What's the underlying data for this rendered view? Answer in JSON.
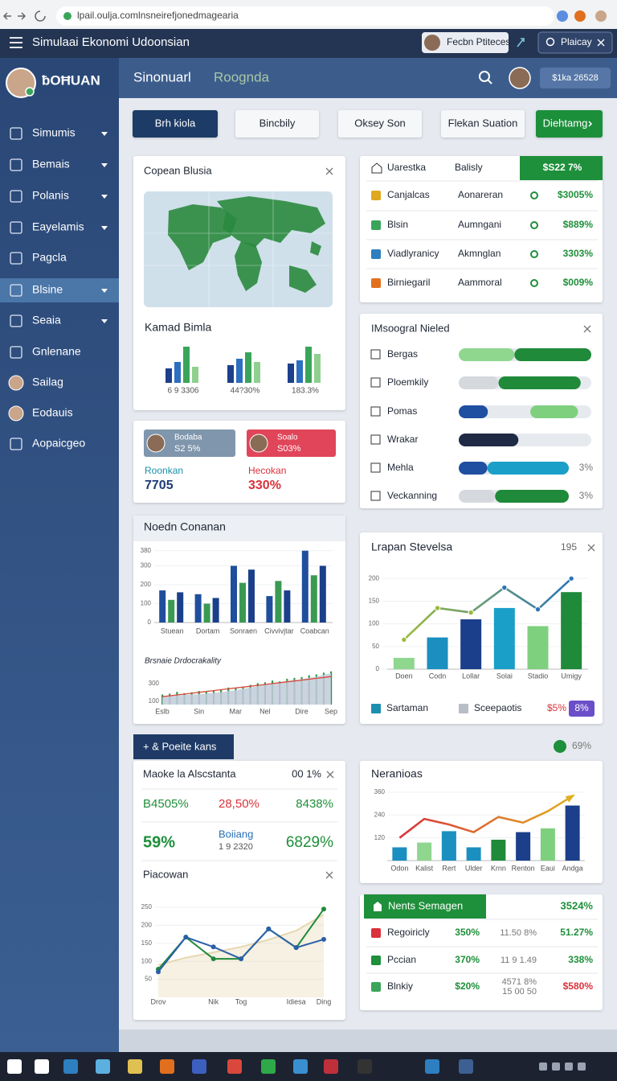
{
  "browser": {
    "url": "lpail.oulja.comlnsneirefjonedmagearia"
  },
  "topbar": {
    "title": "Simulaai Ekonomi Udoonsian",
    "user": "Fecbn Ptiteces",
    "search": "Plaicay"
  },
  "sidebar": {
    "brand": "ƀOĦUAN",
    "active": 5,
    "items": [
      {
        "label": "Simumis",
        "expandable": true
      },
      {
        "label": "Bemais",
        "expandable": true
      },
      {
        "label": "Polanis",
        "expandable": true
      },
      {
        "label": "Eayelamis",
        "expandable": true
      },
      {
        "label": "Pagcla"
      },
      {
        "label": "Blsine",
        "expandable": true
      },
      {
        "label": "Seaia",
        "expandable": true
      },
      {
        "label": "Gnlenane"
      },
      {
        "label": "Sailag",
        "avatar": true
      },
      {
        "label": "Eodauis",
        "avatar": true
      },
      {
        "label": "Aopaicgeo"
      }
    ]
  },
  "header": {
    "tabs": [
      "Sinonuarl",
      "Roognda"
    ],
    "badge": "$1ka 26528"
  },
  "buttons": [
    "Brh kiola",
    "Bincbily",
    "Oksey Son",
    "Flekan Suation",
    "Diehtamg"
  ],
  "map_card": {
    "title": "Copean Blusia",
    "subtitle": "Kamad Bimla",
    "colors": [
      "#1d3f8c",
      "#2d6fc0",
      "#3aa55a",
      "#8fd08f"
    ],
    "groups": [
      {
        "label": "6 9 3306",
        "values": [
          36,
          52,
          90,
          40
        ]
      },
      {
        "label": "44?30%",
        "values": [
          44,
          60,
          76,
          52
        ]
      },
      {
        "label": "183.3%",
        "values": [
          48,
          56,
          90,
          72
        ]
      }
    ]
  },
  "status_table": {
    "columns": [
      "Uarestka",
      "Balisly",
      "$S22 7%"
    ],
    "rows": [
      {
        "cells": [
          "Canjalcas",
          "Aonareran",
          "$3005%"
        ],
        "icon_color": "#e0a81e"
      },
      {
        "cells": [
          "Blsin",
          "Aumngani",
          "$889%"
        ],
        "icon_color": "#3aa55a"
      },
      {
        "cells": [
          "Viadlyranicy",
          "Akmnglan",
          "3303%"
        ],
        "icon_color": "#2d7fc0"
      },
      {
        "cells": [
          "Birniegaril",
          "Aammoral",
          "$009%"
        ],
        "icon_color": "#e0701e"
      }
    ]
  },
  "progress_card": {
    "title": "IMsoogral Nieled",
    "rows": [
      {
        "label": "Bergas",
        "parts": [
          {
            "color": "#8fd68f",
            "value": 42
          },
          {
            "color": "#1f8a3a",
            "value": 58
          }
        ]
      },
      {
        "label": "Ploemkily",
        "parts": [
          {
            "color": "#d5d9dd",
            "value": 30
          },
          {
            "color": "#1f8a3a",
            "value": 62
          }
        ]
      },
      {
        "label": "Pomas",
        "parts": [
          {
            "color": "#1f4fa0",
            "value": 22
          },
          {
            "color": "#e6e9ee",
            "value": 32
          },
          {
            "color": "#7ed07e",
            "value": 36
          }
        ]
      },
      {
        "label": "Wrakar",
        "parts": [
          {
            "color": "#1f2a44",
            "value": 45
          }
        ]
      },
      {
        "label": "Mehla",
        "note": "3%",
        "parts": [
          {
            "color": "#1f4fa0",
            "value": 26
          },
          {
            "color": "#1a9fc8",
            "value": 74
          }
        ]
      },
      {
        "label": "Veckanning",
        "note": "3%",
        "parts": [
          {
            "color": "#d5d9dd",
            "value": 33
          },
          {
            "color": "#1f8a3a",
            "value": 67
          }
        ]
      }
    ]
  },
  "users_card": {
    "chips": [
      {
        "name": "Bodaba",
        "value": "S2 5%"
      },
      {
        "name": "Soalo",
        "value": "S03%"
      }
    ],
    "stats": [
      {
        "label": "Roonkan",
        "value": "7705"
      },
      {
        "label": "Hecokan",
        "value": "330%"
      }
    ]
  },
  "bar_card": {
    "title": "Noedn Conanan",
    "chart": {
      "type": "bar",
      "categories": [
        "Stuean",
        "Dortam",
        "Sonraen",
        "Civvivjtar",
        "Coabcan"
      ],
      "series": [
        {
          "color": "#1f4e9c",
          "values": [
            170,
            150,
            300,
            140,
            380
          ]
        },
        {
          "color": "#3a9a52",
          "values": [
            120,
            100,
            210,
            220,
            250
          ]
        },
        {
          "color": "#1b3f8a",
          "values": [
            160,
            130,
            280,
            170,
            300
          ]
        }
      ],
      "ylim": [
        0,
        400
      ],
      "yticks": [
        0,
        100,
        200,
        300,
        380
      ]
    },
    "area": {
      "type": "area",
      "title": "Brsnaie Drdocrakality",
      "categories": [
        "Eslb",
        null,
        null,
        null,
        null,
        "Sin",
        null,
        null,
        null,
        null,
        "Mar",
        null,
        null,
        null,
        "Nel",
        null,
        null,
        null,
        null,
        "Dire",
        null,
        null,
        null,
        "Sep"
      ],
      "series": [
        {
          "color": "#c3cbdb",
          "values": [
            150,
            160,
            165,
            170,
            175,
            180,
            185,
            195,
            200,
            215,
            225,
            240,
            255,
            270,
            290,
            300,
            310,
            330,
            340,
            350,
            365,
            380,
            400,
            420
          ]
        },
        {
          "color": "#2f9a4a",
          "values": [
            175,
            185,
            205,
            190,
            200,
            215,
            205,
            225,
            235,
            255,
            245,
            265,
            285,
            305,
            315,
            335,
            325,
            355,
            365,
            375,
            395,
            405,
            425,
            440
          ]
        },
        {
          "color": "#d9483b",
          "values": [
            150,
            160,
            170,
            180,
            190,
            200,
            210,
            220,
            230,
            240,
            250,
            260,
            270,
            280,
            290,
            300,
            310,
            320,
            330,
            340,
            350,
            360,
            370,
            380
          ]
        }
      ],
      "ylim": [
        60,
        520
      ],
      "yticks": [
        100,
        300
      ]
    }
  },
  "combo_card": {
    "title": "Lrapan Stevelsa",
    "extra": "195",
    "chart": {
      "type": "bar-line",
      "categories": [
        "Doen",
        "Codn",
        "Lollar",
        "Solai",
        "Stadio",
        "Umigy"
      ],
      "bars": {
        "colors": [
          "#8fd68f",
          "#1a8fc0",
          "#1b3f8a",
          "#1a9fc8",
          "#7ed07e",
          "#1f8a3a"
        ],
        "values": [
          25,
          70,
          110,
          135,
          95,
          170
        ]
      },
      "line": {
        "start_color": "#9bbb3c",
        "color": "#2a74b8",
        "values": [
          65,
          135,
          125,
          180,
          132,
          200
        ]
      },
      "ylim": [
        0,
        220
      ],
      "yticks": [
        0,
        50,
        100,
        150,
        200
      ]
    },
    "legend": [
      {
        "name": "Sartaman",
        "color": "#1a8fb0"
      },
      {
        "name": "Sceepaotis",
        "color": "#b8bdc8"
      }
    ],
    "badges": [
      "$5%",
      "8%"
    ]
  },
  "tab": {
    "label": "+ & Poeite kans",
    "value": "69%"
  },
  "metrics_card": {
    "title": "Maoke la Alscstanta",
    "value": "00 1%",
    "row1": [
      "B4505%",
      "28,50%",
      "8438%"
    ],
    "row2": {
      "left": "59%",
      "label": "Boiiang",
      "sublabel": "1 9 2320",
      "right": "6829%"
    },
    "subtitle": "Piacowan",
    "chart": {
      "type": "line",
      "categories": [
        "Drov",
        null,
        "Nik",
        "Tog",
        null,
        "Idiesa",
        "Ding"
      ],
      "series": [
        {
          "color": "#e6d7b0",
          "values": [
            90,
            110,
            125,
            140,
            160,
            185,
            230
          ]
        },
        {
          "color": "#1f8a3a",
          "values": [
            78,
            167,
            107,
            107,
            190,
            138,
            245
          ]
        },
        {
          "color": "#2a5fa8",
          "values": [
            71,
            167,
            140,
            107,
            190,
            138,
            161
          ]
        }
      ],
      "ylim": [
        0,
        250
      ],
      "yticks": [
        50,
        100,
        150,
        200,
        250
      ]
    }
  },
  "neranioas_card": {
    "title": "Neranioas",
    "chart": {
      "type": "bar-line",
      "categories": [
        "Odon",
        "Kalist",
        "Rert",
        "Ulder",
        "Krnn",
        "Renton",
        "Eaui",
        "Andga"
      ],
      "bars": {
        "colors": [
          "#1a8fc0",
          "#8fd68f",
          "#1a8fc0",
          "#1a8fc0",
          "#1f8a3a",
          "#1b3f8a",
          "#7ed07e",
          "#1b3f8a"
        ],
        "values": [
          70,
          95,
          155,
          70,
          110,
          150,
          170,
          290
        ]
      },
      "line": {
        "start_color": "#d9323b",
        "color": "#e0b020",
        "values": [
          120,
          220,
          190,
          150,
          230,
          200,
          260,
          340
        ]
      },
      "ylim": [
        0,
        360
      ],
      "yticks": [
        120,
        240,
        360
      ]
    }
  },
  "bottom_table": {
    "header": {
      "label": "Nents Semagen",
      "value": "3524%"
    },
    "rows": [
      {
        "label": "Regoiricly",
        "change": "350%",
        "detail": [
          "11.50 8%"
        ],
        "value": "51.27%",
        "color": "#1e8f3a",
        "icon_color": "#d9323b"
      },
      {
        "label": "Pccian",
        "change": "370%",
        "detail": [
          "11 9 1.49"
        ],
        "value": "338%",
        "color": "#1e8f3a",
        "icon_color": "#1e8f3a"
      },
      {
        "label": "Blnkiy",
        "change": "$20%",
        "detail": [
          "4571 8%",
          "15 00 50"
        ],
        "value": "$580%",
        "color": "#d9323b",
        "icon_color": "#3aa55a"
      }
    ]
  }
}
